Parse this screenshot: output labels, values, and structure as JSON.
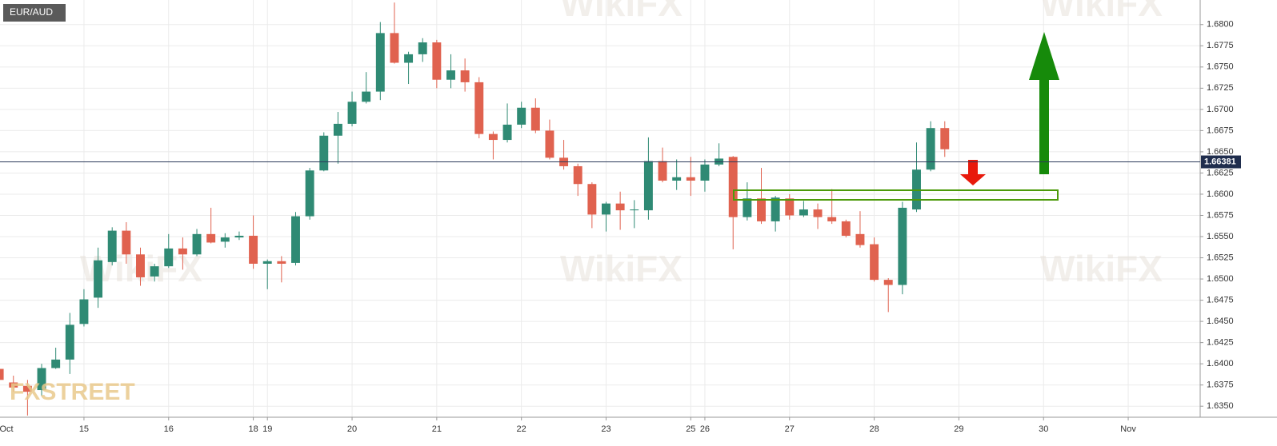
{
  "chart_data": {
    "type": "candlestick",
    "title": "EUR/AUD",
    "x": [
      0,
      1,
      2,
      3,
      4,
      5,
      6,
      7,
      8,
      9,
      10,
      11,
      12,
      13,
      14,
      15,
      16,
      17,
      18,
      19,
      20,
      21,
      22,
      23,
      24,
      25,
      26,
      27,
      28,
      29,
      30,
      31,
      32,
      33,
      34,
      35,
      36,
      37,
      38,
      39,
      40,
      41,
      42,
      43,
      44,
      45,
      46,
      47,
      48,
      49,
      50,
      51,
      52,
      53,
      54,
      55,
      56,
      57,
      58,
      59,
      60,
      61,
      62,
      63,
      64,
      65,
      66,
      67
    ],
    "series": [
      {
        "name": "EUR/AUD",
        "open": [
          1.6394,
          1.6378,
          1.6374,
          1.6369,
          1.6395,
          1.6405,
          1.6447,
          1.6478,
          1.652,
          1.6557,
          1.6529,
          1.6503,
          1.6515,
          1.6536,
          1.6529,
          1.6553,
          1.6544,
          1.6549,
          1.6551,
          1.6518,
          1.6521,
          1.6519,
          1.6574,
          1.6628,
          1.6669,
          1.6683,
          1.6709,
          1.6721,
          1.679,
          1.6755,
          1.6765,
          1.6779,
          1.6735,
          1.6746,
          1.6732,
          1.6671,
          1.6664,
          1.6682,
          1.6702,
          1.6675,
          1.6643,
          1.6633,
          1.6612,
          1.6576,
          1.6589,
          1.6581,
          1.6581,
          1.6639,
          1.6616,
          1.662,
          1.6616,
          1.6635,
          1.6644,
          1.6573,
          1.6595,
          1.6568,
          1.6595,
          1.6575,
          1.6582,
          1.6573,
          1.6568,
          1.6553,
          1.6541,
          1.6499,
          1.6493,
          1.6582,
          1.6629,
          1.6678
        ],
        "high": [
          1.6407,
          1.6386,
          1.6381,
          1.64,
          1.6419,
          1.646,
          1.6488,
          1.6537,
          1.6561,
          1.6567,
          1.6537,
          1.6518,
          1.6553,
          1.6549,
          1.6559,
          1.6584,
          1.6554,
          1.6556,
          1.6575,
          1.6523,
          1.6527,
          1.6579,
          1.6631,
          1.6673,
          1.6697,
          1.6721,
          1.6744,
          1.6803,
          1.6826,
          1.6768,
          1.6784,
          1.6782,
          1.6765,
          1.676,
          1.6738,
          1.6674,
          1.6707,
          1.6709,
          1.6713,
          1.6688,
          1.6664,
          1.6636,
          1.6614,
          1.6591,
          1.6603,
          1.6593,
          1.6667,
          1.6655,
          1.6641,
          1.6644,
          1.6641,
          1.666,
          1.6645,
          1.6614,
          1.6631,
          1.6598,
          1.66,
          1.6592,
          1.6589,
          1.6606,
          1.657,
          1.658,
          1.6549,
          1.6501,
          1.6591,
          1.6661,
          1.6686,
          1.6686
        ],
        "low": [
          1.6377,
          1.6367,
          1.6339,
          1.6362,
          1.6394,
          1.6388,
          1.6444,
          1.6466,
          1.6516,
          1.6518,
          1.6492,
          1.6497,
          1.6513,
          1.6511,
          1.6527,
          1.6542,
          1.6537,
          1.6546,
          1.6512,
          1.6488,
          1.6496,
          1.6516,
          1.657,
          1.6627,
          1.6636,
          1.668,
          1.6707,
          1.6711,
          1.6754,
          1.673,
          1.6756,
          1.6725,
          1.6725,
          1.6721,
          1.6666,
          1.6641,
          1.6661,
          1.6678,
          1.6672,
          1.6641,
          1.6629,
          1.6598,
          1.656,
          1.6556,
          1.6558,
          1.656,
          1.657,
          1.6614,
          1.6605,
          1.6598,
          1.6603,
          1.6633,
          1.6535,
          1.6569,
          1.6565,
          1.6556,
          1.657,
          1.6573,
          1.6559,
          1.6565,
          1.6549,
          1.6537,
          1.6497,
          1.6461,
          1.6482,
          1.6579,
          1.6627,
          1.6644
        ],
        "close": [
          1.6381,
          1.6372,
          1.6367,
          1.6395,
          1.6405,
          1.6446,
          1.6476,
          1.6522,
          1.6557,
          1.6529,
          1.6502,
          1.6515,
          1.6536,
          1.6529,
          1.6553,
          1.6543,
          1.6549,
          1.6551,
          1.6518,
          1.6521,
          1.6518,
          1.6574,
          1.6628,
          1.6669,
          1.6683,
          1.6709,
          1.6721,
          1.679,
          1.6755,
          1.6765,
          1.6779,
          1.6735,
          1.6746,
          1.6732,
          1.6671,
          1.6664,
          1.6682,
          1.6702,
          1.6675,
          1.6643,
          1.6633,
          1.6612,
          1.6576,
          1.6589,
          1.6581,
          1.6582,
          1.6639,
          1.6616,
          1.662,
          1.6616,
          1.6635,
          1.6642,
          1.6573,
          1.6595,
          1.6568,
          1.6596,
          1.6575,
          1.6582,
          1.6573,
          1.6568,
          1.6551,
          1.654,
          1.6499,
          1.6493,
          1.6584,
          1.6629,
          1.6678,
          1.6653
        ]
      }
    ],
    "up_color": "#2f8a74",
    "down_color": "#e0624f",
    "last_price": 1.66381,
    "xlim": [
      0.05,
      85.1
    ],
    "xticks": [
      {
        "value": 0,
        "label": "Oct"
      },
      {
        "value": 6,
        "label": "15"
      },
      {
        "value": 12,
        "label": "16"
      },
      {
        "value": 18,
        "label": "18"
      },
      {
        "value": 19,
        "label": "19"
      },
      {
        "value": 25,
        "label": "20"
      },
      {
        "value": 31,
        "label": "21"
      },
      {
        "value": 37,
        "label": "22"
      },
      {
        "value": 43,
        "label": "23"
      },
      {
        "value": 49,
        "label": "25"
      },
      {
        "value": 50,
        "label": "26"
      },
      {
        "value": 56,
        "label": "27"
      },
      {
        "value": 62,
        "label": "28"
      },
      {
        "value": 68,
        "label": "29"
      },
      {
        "value": 74,
        "label": "30"
      },
      {
        "value": 80,
        "label": "Nov"
      }
    ],
    "ylim": [
      1.6337,
      1.6829
    ],
    "yticks": [
      {
        "value": 1.635,
        "label": "1.6350"
      },
      1.6375,
      {
        "value": 1.64,
        "label": "1.6400"
      },
      1.6425,
      {
        "value": 1.645,
        "label": "1.6450"
      },
      1.6475,
      {
        "value": 1.65,
        "label": "1.6500"
      },
      1.6525,
      {
        "value": 1.655,
        "label": "1.6550"
      },
      1.6575,
      {
        "value": 1.66,
        "label": "1.6600"
      },
      1.6625,
      {
        "value": 1.665,
        "label": "1.6650"
      },
      1.6675,
      {
        "value": 1.67,
        "label": "1.6700"
      },
      1.6725,
      {
        "value": 1.675,
        "label": "1.6750"
      },
      1.6775,
      {
        "value": 1.68,
        "label": "1.6800"
      }
    ],
    "grid": true
  },
  "watermark": "WikiFX",
  "logo": "FXSTREET"
}
